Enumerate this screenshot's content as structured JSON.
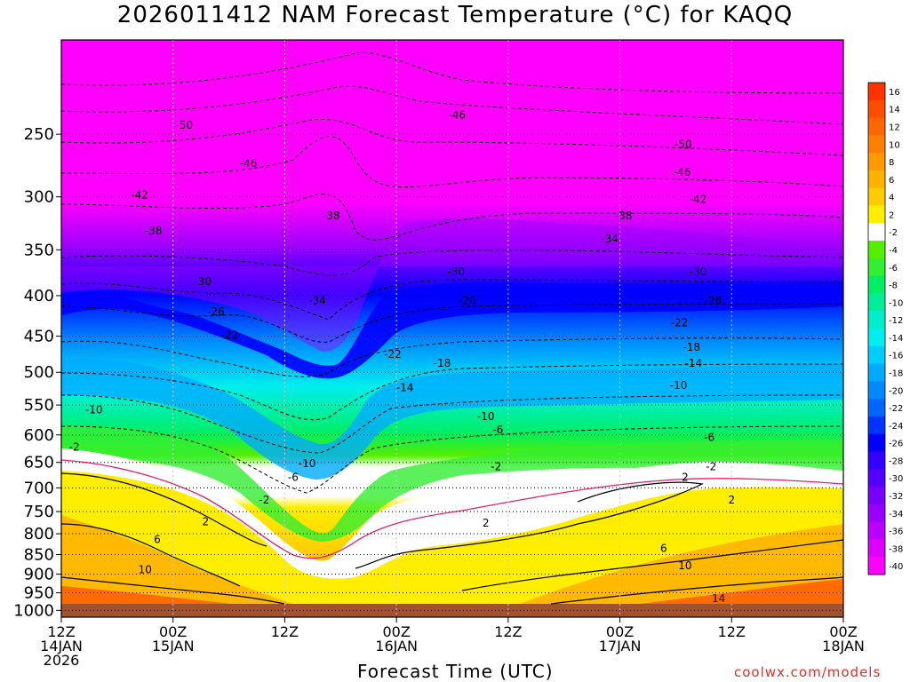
{
  "title": "2026011412 NAM Forecast Temperature (°C) for KAQQ",
  "xlabel": "Forecast Time (UTC)",
  "credit": "coolwx.com/models",
  "chart_data": {
    "type": "heatmap",
    "title": "2026011412 NAM Forecast Temperature (°C) for KAQQ",
    "xlabel": "Forecast Time (UTC)",
    "ylabel": "",
    "x_hours_range": [
      0,
      84
    ],
    "y_pressure_range": [
      1020,
      190
    ],
    "y_ticks": [
      250,
      300,
      350,
      400,
      450,
      500,
      550,
      600,
      650,
      700,
      750,
      800,
      850,
      900,
      950,
      1000
    ],
    "x_ticks": [
      {
        "hour": 0,
        "lines": [
          "12Z",
          "14JAN",
          "2026"
        ]
      },
      {
        "hour": 12,
        "lines": [
          "00Z",
          "15JAN"
        ]
      },
      {
        "hour": 24,
        "lines": [
          "12Z",
          ""
        ]
      },
      {
        "hour": 36,
        "lines": [
          "00Z",
          "16JAN"
        ]
      },
      {
        "hour": 48,
        "lines": [
          "12Z",
          ""
        ]
      },
      {
        "hour": 60,
        "lines": [
          "00Z",
          "17JAN"
        ]
      },
      {
        "hour": 72,
        "lines": [
          "12Z",
          ""
        ]
      },
      {
        "hour": 84,
        "lines": [
          "00Z",
          "18JAN"
        ]
      }
    ],
    "colorbar": [
      {
        "label": "16",
        "color": "#ff3300"
      },
      {
        "label": "14",
        "color": "#ff4d00"
      },
      {
        "label": "12",
        "color": "#ff6600"
      },
      {
        "label": "10",
        "color": "#ff8000"
      },
      {
        "label": "8",
        "color": "#ff9900"
      },
      {
        "label": "6",
        "color": "#ffb300"
      },
      {
        "label": "4",
        "color": "#ffcc00"
      },
      {
        "label": "2",
        "color": "#ffee00"
      },
      {
        "label": "-2",
        "color": "#ffffff"
      },
      {
        "label": "-4",
        "color": "#55ee00"
      },
      {
        "label": "-6",
        "color": "#33ee33"
      },
      {
        "label": "-8",
        "color": "#00ee66"
      },
      {
        "label": "-10",
        "color": "#00ee99"
      },
      {
        "label": "-12",
        "color": "#00eecc"
      },
      {
        "label": "-14",
        "color": "#00eeee"
      },
      {
        "label": "-16",
        "color": "#00ccff"
      },
      {
        "label": "-18",
        "color": "#00aaff"
      },
      {
        "label": "-20",
        "color": "#0088ff"
      },
      {
        "label": "-22",
        "color": "#0066ff"
      },
      {
        "label": "-24",
        "color": "#0033ff"
      },
      {
        "label": "-26",
        "color": "#0000ff"
      },
      {
        "label": "-28",
        "color": "#3300ff"
      },
      {
        "label": "-30",
        "color": "#5500ff"
      },
      {
        "label": "-32",
        "color": "#7700ff"
      },
      {
        "label": "-34",
        "color": "#9900ff"
      },
      {
        "label": "-36",
        "color": "#bb00ff"
      },
      {
        "label": "-38",
        "color": "#dd00ff"
      },
      {
        "label": "-40",
        "color": "#ff00ff"
      }
    ],
    "profiles": [
      {
        "hour": 0,
        "p": [
          1000,
          900,
          800,
          700,
          650,
          600,
          550,
          500,
          450,
          400,
          350,
          300,
          250
        ],
        "t": [
          10,
          6,
          2,
          -1,
          -2,
          -8,
          -10,
          -16,
          -22,
          -28,
          -34,
          -42,
          -50
        ]
      },
      {
        "hour": 12,
        "p": [
          1000,
          900,
          800,
          700,
          650,
          600,
          550,
          500,
          450,
          400,
          350,
          300,
          250
        ],
        "t": [
          10,
          6,
          1,
          -1,
          -4,
          -8,
          -12,
          -16,
          -22,
          -28,
          -34,
          -42,
          -48
        ]
      },
      {
        "hour": 24,
        "p": [
          1000,
          900,
          800,
          700,
          650,
          600,
          550,
          500,
          450,
          400,
          350,
          300,
          250
        ],
        "t": [
          10,
          4,
          -2,
          -6,
          -10,
          -14,
          -18,
          -22,
          -28,
          -32,
          -38,
          -42,
          -48
        ]
      },
      {
        "hour": 29,
        "p": [
          1000,
          900,
          800,
          700,
          650,
          600,
          550,
          500,
          450,
          400,
          350,
          300,
          250
        ],
        "t": [
          8,
          3,
          -4,
          -8,
          -12,
          -16,
          -20,
          -24,
          -30,
          -34,
          -38,
          -38,
          -46
        ]
      },
      {
        "hour": 36,
        "p": [
          1000,
          900,
          800,
          700,
          650,
          600,
          550,
          500,
          450,
          400,
          350,
          300,
          250
        ],
        "t": [
          8,
          4,
          -1,
          -4,
          -8,
          -10,
          -14,
          -18,
          -24,
          -30,
          -36,
          -42,
          -48
        ]
      },
      {
        "hour": 48,
        "p": [
          1000,
          900,
          800,
          700,
          650,
          600,
          550,
          500,
          450,
          400,
          350,
          300,
          250
        ],
        "t": [
          10,
          4,
          2,
          -1,
          -4,
          -8,
          -12,
          -16,
          -20,
          -26,
          -32,
          -40,
          -48
        ]
      },
      {
        "hour": 60,
        "p": [
          1000,
          900,
          800,
          700,
          650,
          600,
          550,
          500,
          450,
          400,
          350,
          300,
          250
        ],
        "t": [
          12,
          6,
          2,
          -1,
          -4,
          -8,
          -12,
          -16,
          -20,
          -26,
          -32,
          -40,
          -48
        ]
      },
      {
        "hour": 72,
        "p": [
          1000,
          900,
          800,
          700,
          650,
          600,
          550,
          500,
          450,
          400,
          350,
          300,
          250
        ],
        "t": [
          14,
          8,
          2,
          -1,
          -6,
          -8,
          -12,
          -16,
          -20,
          -26,
          -32,
          -40,
          -48
        ]
      },
      {
        "hour": 84,
        "p": [
          1000,
          900,
          800,
          700,
          650,
          600,
          550,
          500,
          450,
          400,
          350,
          300,
          250
        ],
        "t": [
          14,
          10,
          4,
          -1,
          -6,
          -8,
          -12,
          -16,
          -20,
          -26,
          -34,
          -42,
          -50
        ]
      }
    ],
    "contour_labels": [
      {
        "text": "-50",
        "hour": 13.2,
        "p": 244
      },
      {
        "text": "-46",
        "hour": 42.5,
        "p": 237
      },
      {
        "text": "-50",
        "hour": 66.8,
        "p": 258
      },
      {
        "text": "-46",
        "hour": 20.1,
        "p": 273
      },
      {
        "text": "-46",
        "hour": 66.7,
        "p": 280
      },
      {
        "text": "-42",
        "hour": 8.4,
        "p": 299
      },
      {
        "text": "-42",
        "hour": 68.4,
        "p": 303
      },
      {
        "text": "-38",
        "hour": 29.0,
        "p": 318
      },
      {
        "text": "-38",
        "hour": 60.4,
        "p": 318
      },
      {
        "text": "-38",
        "hour": 9.9,
        "p": 332
      },
      {
        "text": "-34",
        "hour": 58.9,
        "p": 340
      },
      {
        "text": "-30",
        "hour": 42.4,
        "p": 374
      },
      {
        "text": "-30",
        "hour": 68.4,
        "p": 374
      },
      {
        "text": "-30",
        "hour": 15.2,
        "p": 385
      },
      {
        "text": "-26",
        "hour": 43.6,
        "p": 407
      },
      {
        "text": "-26",
        "hour": 70.0,
        "p": 407
      },
      {
        "text": "-34",
        "hour": 27.5,
        "p": 407
      },
      {
        "text": "-26",
        "hour": 16.6,
        "p": 420
      },
      {
        "text": "-22",
        "hour": 66.4,
        "p": 434
      },
      {
        "text": "-22",
        "hour": 18.1,
        "p": 450
      },
      {
        "text": "-18",
        "hour": 67.7,
        "p": 466
      },
      {
        "text": "-22",
        "hour": 35.6,
        "p": 476
      },
      {
        "text": "-18",
        "hour": 40.9,
        "p": 488
      },
      {
        "text": "-14",
        "hour": 67.9,
        "p": 488
      },
      {
        "text": "-14",
        "hour": 36.9,
        "p": 524
      },
      {
        "text": "-10",
        "hour": 66.3,
        "p": 521
      },
      {
        "text": "-10",
        "hour": 3.5,
        "p": 559
      },
      {
        "text": "-10",
        "hour": 45.6,
        "p": 570
      },
      {
        "text": "-6",
        "hour": 46.9,
        "p": 593
      },
      {
        "text": "-6",
        "hour": 69.6,
        "p": 606
      },
      {
        "text": "-2",
        "hour": 1.4,
        "p": 623
      },
      {
        "text": "-10",
        "hour": 26.4,
        "p": 654
      },
      {
        "text": "-2",
        "hour": 46.7,
        "p": 660
      },
      {
        "text": "-2",
        "hour": 69.8,
        "p": 660
      },
      {
        "text": "-6",
        "hour": 24.9,
        "p": 681
      },
      {
        "text": "2",
        "hour": 67.0,
        "p": 681
      },
      {
        "text": "-2",
        "hour": 21.8,
        "p": 727
      },
      {
        "text": "2",
        "hour": 72.0,
        "p": 727
      },
      {
        "text": "2",
        "hour": 15.5,
        "p": 774
      },
      {
        "text": "2",
        "hour": 45.6,
        "p": 778
      },
      {
        "text": "6",
        "hour": 10.3,
        "p": 816
      },
      {
        "text": "6",
        "hour": 64.7,
        "p": 837
      },
      {
        "text": "10",
        "hour": 9.0,
        "p": 890
      },
      {
        "text": "10",
        "hour": 67.0,
        "p": 880
      },
      {
        "text": "14",
        "hour": 70.6,
        "p": 968
      }
    ]
  }
}
